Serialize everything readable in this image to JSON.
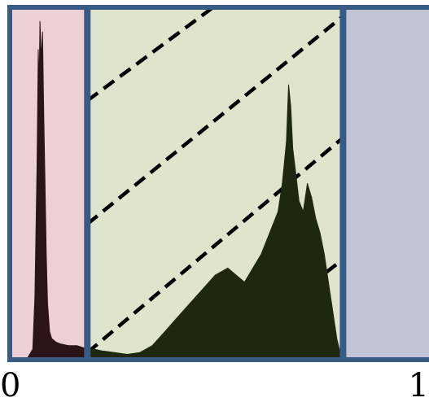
{
  "chart_data": {
    "type": "area",
    "title": "",
    "xlabel": "",
    "ylabel": "",
    "xlim": [
      0,
      1
    ],
    "ylim": [
      0,
      1
    ],
    "x_tick_labels": [
      "0",
      "1"
    ],
    "grid": false,
    "legend": "none",
    "regions": [
      {
        "name": "",
        "x0": 0.0,
        "x1": 0.185,
        "color": "#ecd0d4"
      },
      {
        "name": "",
        "x0": 0.185,
        "x1": 0.795,
        "color": "#dfe5cc"
      },
      {
        "name": "",
        "x0": 0.795,
        "x1": 1.0,
        "color": "#c0c4d4"
      }
    ],
    "dividers": [
      0.185,
      0.795
    ],
    "dashed_lines": [
      {
        "x": [
          0.185,
          0.485
        ],
        "y": [
          0.735,
          1.0
        ]
      },
      {
        "x": [
          0.185,
          0.795
        ],
        "y": [
          0.385,
          0.975
        ]
      },
      {
        "x": [
          0.185,
          0.795
        ],
        "y": [
          0.02,
          0.63
        ]
      },
      {
        "x": [
          0.485,
          0.795
        ],
        "y": [
          0.0,
          0.285
        ]
      }
    ],
    "series": [
      {
        "name": "",
        "color": "#2b1416",
        "x": [
          0.0,
          0.04,
          0.055,
          0.06,
          0.065,
          0.068,
          0.07,
          0.072,
          0.075,
          0.078,
          0.081,
          0.084,
          0.087,
          0.09,
          0.095,
          0.1,
          0.11,
          0.12,
          0.14,
          0.16,
          0.185
        ],
        "y": [
          0.0,
          0.0,
          0.03,
          0.18,
          0.55,
          0.88,
          0.78,
          0.96,
          0.85,
          0.93,
          0.7,
          0.5,
          0.3,
          0.16,
          0.08,
          0.06,
          0.05,
          0.045,
          0.04,
          0.04,
          0.03
        ]
      },
      {
        "name": "",
        "color": "#1e2810",
        "x": [
          0.185,
          0.2,
          0.22,
          0.25,
          0.28,
          0.31,
          0.34,
          0.37,
          0.4,
          0.43,
          0.46,
          0.49,
          0.52,
          0.54,
          0.56,
          0.58,
          0.6,
          0.62,
          0.64,
          0.65,
          0.66,
          0.665,
          0.67,
          0.675,
          0.68,
          0.69,
          0.7,
          0.71,
          0.72,
          0.73,
          0.74,
          0.75,
          0.76,
          0.77,
          0.78,
          0.79,
          0.795
        ],
        "y": [
          0.03,
          0.03,
          0.025,
          0.02,
          0.015,
          0.02,
          0.04,
          0.08,
          0.12,
          0.16,
          0.2,
          0.24,
          0.26,
          0.24,
          0.22,
          0.26,
          0.3,
          0.36,
          0.42,
          0.5,
          0.62,
          0.78,
          0.72,
          0.6,
          0.55,
          0.45,
          0.42,
          0.5,
          0.46,
          0.4,
          0.36,
          0.3,
          0.22,
          0.14,
          0.06,
          0.01,
          0.0
        ]
      }
    ]
  }
}
